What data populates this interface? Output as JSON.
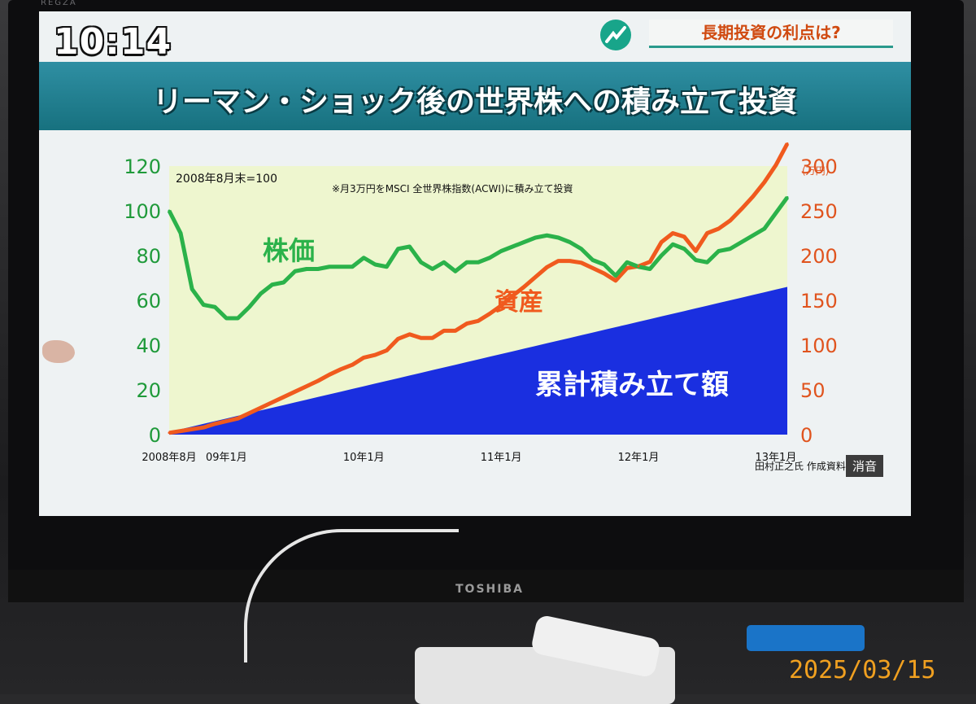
{
  "tv": {
    "top_brand": "REGZA",
    "bottom_brand": "TOSHIBA",
    "mute_label": "消音"
  },
  "overlay": {
    "clock": "10:14",
    "topic": "長期投資の利点は?"
  },
  "title": "リーマン・ショック後の世界株への積み立て投資",
  "photo_date": "2025/03/15",
  "colors": {
    "plot_bg": "#eef6cf",
    "stock": "#2bb24a",
    "asset": "#f05a1e",
    "cumulative": "#1a2fe0",
    "title_band": "#1f7e8e",
    "left_axis": "#1f9a3a",
    "right_axis": "#e0541e"
  },
  "chart_data": {
    "type": "line",
    "title": "リーマン・ショック後の世界株への積み立て投資",
    "base_note": "2008年8月末=100",
    "method_note": "※月3万円をMSCI 全世界株指数(ACWI)に積み立て投資",
    "credit": "田村正之氏 作成資料",
    "x_ticks": [
      {
        "label": "2008年8月",
        "index": 0
      },
      {
        "label": "09年1月",
        "index": 5
      },
      {
        "label": "10年1月",
        "index": 17
      },
      {
        "label": "11年1月",
        "index": 29
      },
      {
        "label": "12年1月",
        "index": 41
      },
      {
        "label": "13年1月",
        "index": 53
      }
    ],
    "left_axis": {
      "ylim": [
        0,
        120
      ],
      "ticks": [
        0,
        20,
        40,
        60,
        80,
        100,
        120
      ]
    },
    "right_axis": {
      "unit": "(万円)",
      "ylim": [
        0,
        300
      ],
      "ticks": [
        0,
        50,
        100,
        150,
        200,
        250,
        300
      ]
    },
    "series": [
      {
        "name": "株価",
        "axis": "left",
        "values": [
          100,
          90,
          65,
          58,
          57,
          52,
          52,
          57,
          63,
          67,
          68,
          73,
          74,
          74,
          75,
          75,
          75,
          79,
          76,
          75,
          83,
          84,
          77,
          74,
          77,
          73,
          77,
          77,
          79,
          82,
          84,
          86,
          88,
          89,
          88,
          86,
          83,
          78,
          76,
          71,
          77,
          75,
          74,
          80,
          85,
          83,
          78,
          77,
          82,
          83,
          86,
          89,
          92,
          99,
          106
        ]
      },
      {
        "name": "資産",
        "axis": "right",
        "values": [
          2,
          4,
          6,
          8,
          12,
          15,
          18,
          24,
          30,
          36,
          42,
          48,
          54,
          60,
          67,
          73,
          78,
          86,
          89,
          94,
          107,
          112,
          108,
          108,
          116,
          116,
          124,
          127,
          135,
          144,
          155,
          165,
          176,
          187,
          194,
          194,
          192,
          186,
          180,
          172,
          186,
          188,
          193,
          215,
          225,
          221,
          205,
          225,
          230,
          239,
          252,
          266,
          282,
          301,
          325
        ]
      },
      {
        "name": "累計積み立て額",
        "axis": "right",
        "type": "area",
        "values": [
          3,
          6,
          9,
          12,
          15,
          18,
          21,
          24,
          27,
          30,
          33,
          36,
          39,
          42,
          45,
          48,
          51,
          54,
          57,
          60,
          63,
          66,
          69,
          72,
          75,
          78,
          81,
          84,
          87,
          90,
          93,
          96,
          99,
          102,
          105,
          108,
          111,
          114,
          117,
          120,
          123,
          126,
          129,
          132,
          135,
          138,
          141,
          144,
          147,
          150,
          153,
          156,
          159,
          162,
          165
        ]
      }
    ],
    "grid": false
  }
}
